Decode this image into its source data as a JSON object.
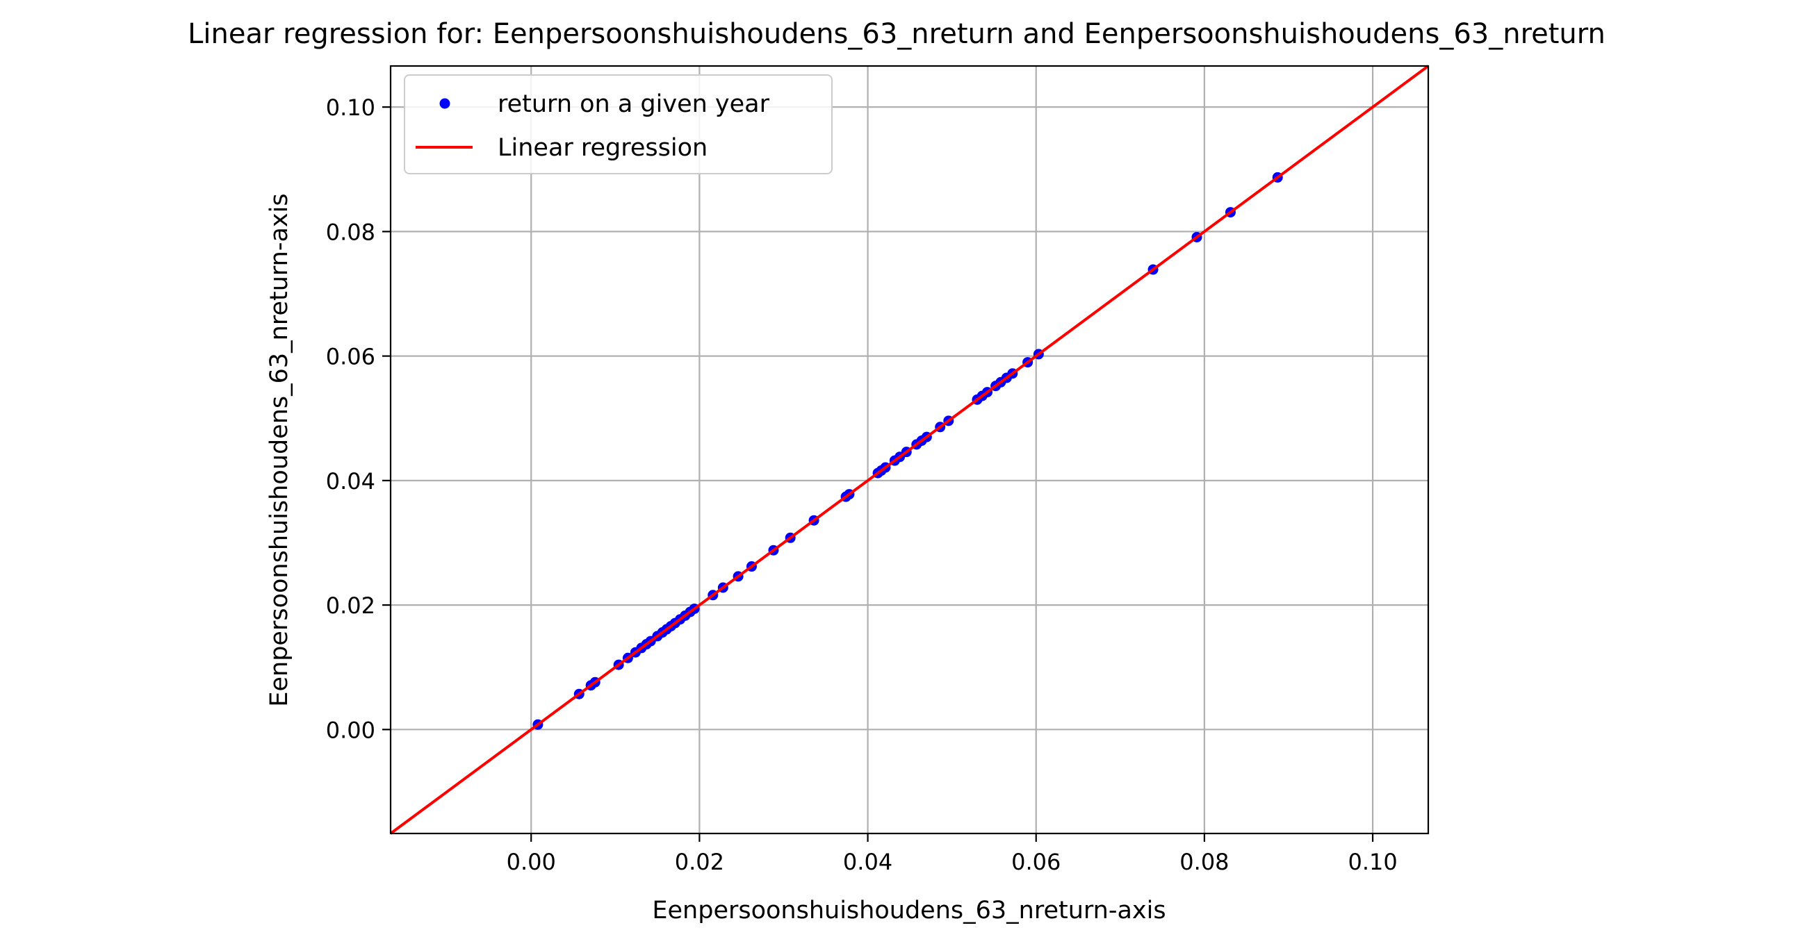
{
  "chart_data": {
    "type": "scatter",
    "title": "Linear regression for: Eenpersoonshuishoudens_63_nreturn and Eenpersoonshuishoudens_63_nreturn",
    "xlabel": "Eenpersoonshuishoudens_63_nreturn-axis",
    "ylabel": "Eenpersoonshuishoudens_63_nreturn-axis",
    "xlim": [
      -0.0167,
      0.1066
    ],
    "ylim": [
      -0.0167,
      0.1066
    ],
    "xticks": [
      "0.00",
      "0.02",
      "0.04",
      "0.06",
      "0.08",
      "0.10"
    ],
    "yticks": [
      "0.00",
      "0.02",
      "0.04",
      "0.06",
      "0.08",
      "0.10"
    ],
    "tick_values": [
      0.0,
      0.02,
      0.04,
      0.06,
      0.08,
      0.1
    ],
    "grid": true,
    "legend_position": "top-left",
    "series": [
      {
        "name": "return on a given year",
        "kind": "scatter",
        "color": "#0000ff",
        "x": [
          0.0008,
          0.0057,
          0.0071,
          0.0076,
          0.0104,
          0.0115,
          0.0124,
          0.0131,
          0.0137,
          0.0142,
          0.015,
          0.0156,
          0.0161,
          0.0166,
          0.0171,
          0.0177,
          0.0183,
          0.0189,
          0.0194,
          0.0216,
          0.0228,
          0.0246,
          0.0262,
          0.0288,
          0.0308,
          0.0336,
          0.0374,
          0.0378,
          0.0412,
          0.0416,
          0.0421,
          0.0432,
          0.0438,
          0.0446,
          0.0458,
          0.0464,
          0.047,
          0.0486,
          0.0496,
          0.053,
          0.0536,
          0.0542,
          0.0552,
          0.0558,
          0.0565,
          0.0572,
          0.059,
          0.0603,
          0.0739,
          0.0791,
          0.0831,
          0.0887
        ],
        "y": [
          0.0008,
          0.0057,
          0.0071,
          0.0076,
          0.0104,
          0.0115,
          0.0124,
          0.0131,
          0.0137,
          0.0142,
          0.015,
          0.0156,
          0.0161,
          0.0166,
          0.0171,
          0.0177,
          0.0183,
          0.0189,
          0.0194,
          0.0216,
          0.0228,
          0.0246,
          0.0262,
          0.0288,
          0.0308,
          0.0336,
          0.0374,
          0.0378,
          0.0412,
          0.0416,
          0.0421,
          0.0432,
          0.0438,
          0.0446,
          0.0458,
          0.0464,
          0.047,
          0.0486,
          0.0496,
          0.053,
          0.0536,
          0.0542,
          0.0552,
          0.0558,
          0.0565,
          0.0572,
          0.059,
          0.0603,
          0.0739,
          0.0791,
          0.0831,
          0.0887
        ]
      },
      {
        "name": "Linear regression",
        "kind": "line",
        "color": "#ff0000",
        "slope": 1.0,
        "intercept": 0.0
      }
    ]
  }
}
